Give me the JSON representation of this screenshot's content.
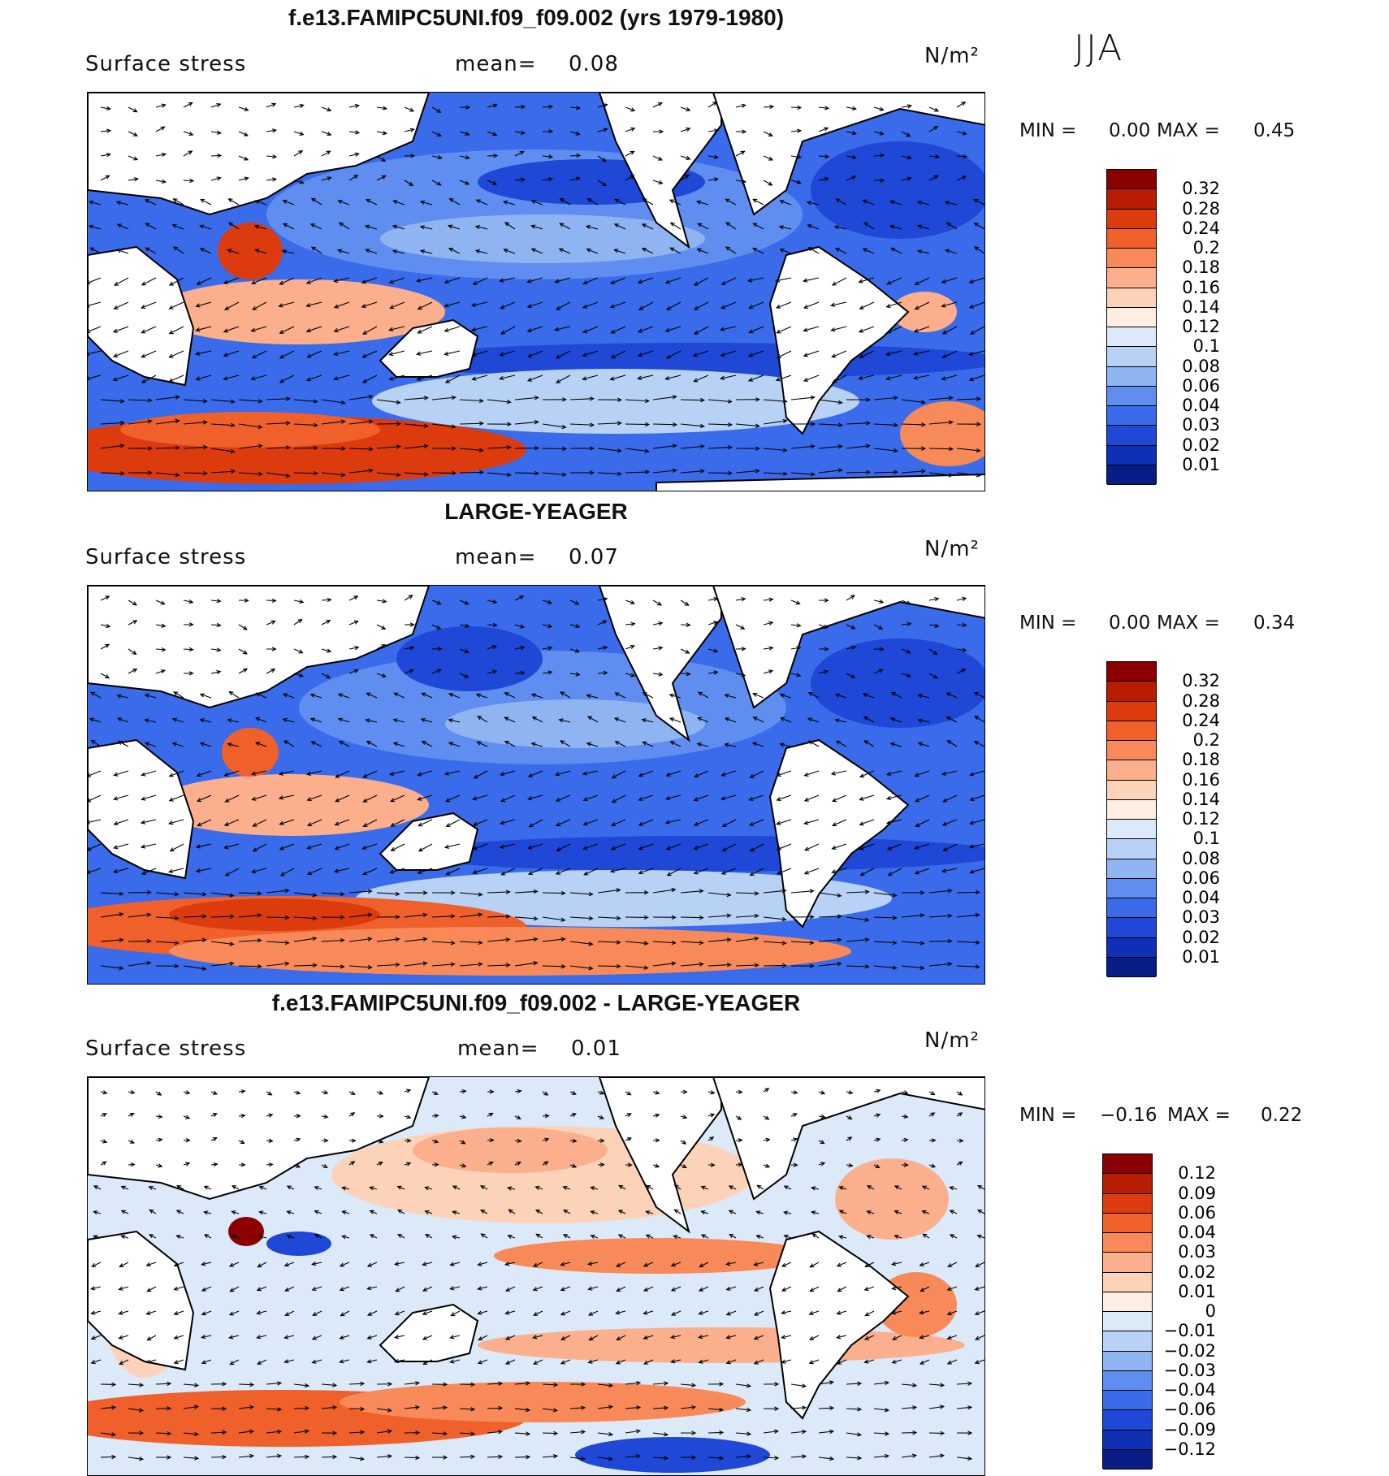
{
  "season": "JJA",
  "panels": [
    {
      "title": "f.e13.FAMIPC5UNI.f09_f09.002 (yrs 1979-1980)",
      "variable": "Surface stress",
      "mean_label": "mean=",
      "mean_value": "0.08",
      "units": "N/m²",
      "min_label": "MIN =",
      "min_value": "0.00",
      "max_label": "MAX =",
      "max_value": "0.45",
      "colorbar": {
        "ticks": [
          "0.32",
          "0.28",
          "0.24",
          "0.2",
          "0.18",
          "0.16",
          "0.14",
          "0.12",
          "0.1",
          "0.08",
          "0.06",
          "0.04",
          "0.03",
          "0.02",
          "0.01"
        ],
        "colors": [
          "#8b0000",
          "#b81d04",
          "#dc3b0e",
          "#f0602a",
          "#f88a5a",
          "#fbaf8c",
          "#fcd3b8",
          "#fdeee2",
          "#dbe9f8",
          "#b8d2f5",
          "#8fb4f2",
          "#5f8ef0",
          "#3a6bea",
          "#1f48d6",
          "#0f2fb4",
          "#081d85"
        ]
      },
      "land_color": "#ffffff"
    },
    {
      "title": "LARGE-YEAGER",
      "variable": "Surface stress",
      "mean_label": "mean=",
      "mean_value": "0.07",
      "units": "N/m²",
      "min_label": "MIN =",
      "min_value": "0.00",
      "max_label": "MAX =",
      "max_value": "0.34",
      "colorbar": {
        "ticks": [
          "0.32",
          "0.28",
          "0.24",
          "0.2",
          "0.18",
          "0.16",
          "0.14",
          "0.12",
          "0.1",
          "0.08",
          "0.06",
          "0.04",
          "0.03",
          "0.02",
          "0.01"
        ],
        "colors": [
          "#8b0000",
          "#b81d04",
          "#dc3b0e",
          "#f0602a",
          "#f88a5a",
          "#fbaf8c",
          "#fcd3b8",
          "#fdeee2",
          "#dbe9f8",
          "#b8d2f5",
          "#8fb4f2",
          "#5f8ef0",
          "#3a6bea",
          "#1f48d6",
          "#0f2fb4",
          "#081d85"
        ]
      },
      "land_color": "#ffffff"
    },
    {
      "title": "f.e13.FAMIPC5UNI.f09_f09.002 - LARGE-YEAGER",
      "variable": "Surface stress",
      "mean_label": "mean=",
      "mean_value": "0.01",
      "units": "N/m²",
      "min_label": "MIN =",
      "min_value": "−0.16",
      "max_label": "MAX =",
      "max_value": "0.22",
      "colorbar": {
        "ticks": [
          "0.12",
          "0.09",
          "0.06",
          "0.04",
          "0.03",
          "0.02",
          "0.01",
          "0",
          "−0.01",
          "−0.02",
          "−0.03",
          "−0.04",
          "−0.06",
          "−0.09",
          "−0.12"
        ],
        "colors": [
          "#8b0000",
          "#b81d04",
          "#dc3b0e",
          "#f0602a",
          "#f88a5a",
          "#fbaf8c",
          "#fcd3b8",
          "#fdeee2",
          "#dbe9f8",
          "#b8d2f5",
          "#8fb4f2",
          "#5f8ef0",
          "#3a6bea",
          "#1f48d6",
          "#0f2fb4",
          "#081d85"
        ]
      },
      "land_color": "#ffffff"
    }
  ]
}
